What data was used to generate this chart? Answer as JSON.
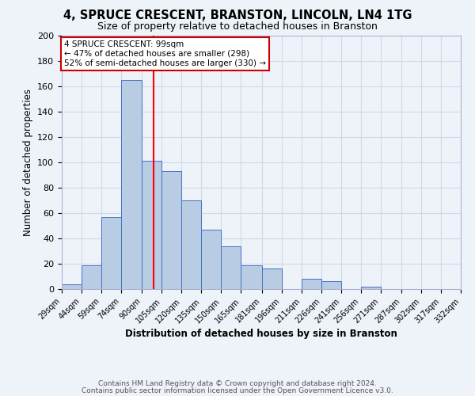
{
  "title": "4, SPRUCE CRESCENT, BRANSTON, LINCOLN, LN4 1TG",
  "subtitle": "Size of property relative to detached houses in Branston",
  "xlabel": "Distribution of detached houses by size in Branston",
  "ylabel": "Number of detached properties",
  "all_values": [
    4,
    19,
    57,
    165,
    101,
    93,
    70,
    47,
    34,
    19,
    16,
    0,
    8,
    6,
    0,
    2,
    0,
    0,
    0,
    0
  ],
  "bin_labels": [
    "29sqm",
    "44sqm",
    "59sqm",
    "74sqm",
    "90sqm",
    "105sqm",
    "120sqm",
    "135sqm",
    "150sqm",
    "165sqm",
    "181sqm",
    "196sqm",
    "211sqm",
    "226sqm",
    "241sqm",
    "256sqm",
    "271sqm",
    "287sqm",
    "302sqm",
    "317sqm",
    "332sqm"
  ],
  "bin_edges": [
    29,
    44,
    59,
    74,
    90,
    105,
    120,
    135,
    150,
    165,
    181,
    196,
    211,
    226,
    241,
    256,
    271,
    287,
    302,
    317,
    332
  ],
  "bar_color": "#b8cce4",
  "bar_edge_color": "#4472c4",
  "red_line_x": 99,
  "annotation_title": "4 SPRUCE CRESCENT: 99sqm",
  "annotation_line1": "← 47% of detached houses are smaller (298)",
  "annotation_line2": "52% of semi-detached houses are larger (330) →",
  "annotation_box_color": "#ffffff",
  "annotation_box_edge": "#cc0000",
  "ylim": [
    0,
    200
  ],
  "yticks": [
    0,
    20,
    40,
    60,
    80,
    100,
    120,
    140,
    160,
    180,
    200
  ],
  "footer1": "Contains HM Land Registry data © Crown copyright and database right 2024.",
  "footer2": "Contains public sector information licensed under the Open Government Licence v3.0.",
  "bg_color": "#eef2f9",
  "grid_color": "#d0d8e8"
}
